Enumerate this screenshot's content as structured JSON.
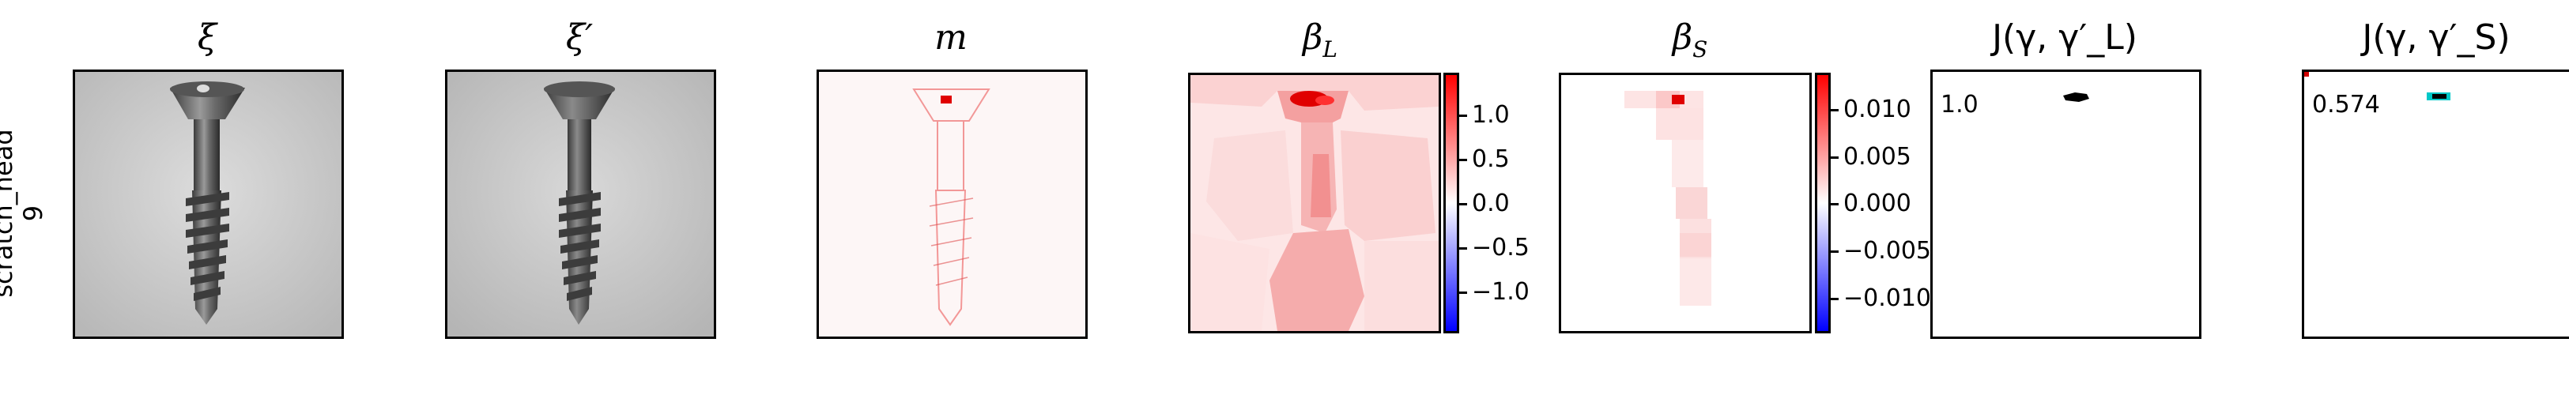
{
  "row_label": {
    "line1": "scratch_head",
    "line2": "9"
  },
  "panels": [
    {
      "key": "xi",
      "title": "ξ"
    },
    {
      "key": "xi_prime",
      "title": "ξ′"
    },
    {
      "key": "m",
      "title": "m"
    },
    {
      "key": "beta_l",
      "title": "β_L",
      "title_main": "β",
      "title_sub": "L"
    },
    {
      "key": "beta_s",
      "title": "β_S",
      "title_main": "β",
      "title_sub": "S"
    },
    {
      "key": "j_l",
      "title": "J(γ, γ′_L)"
    },
    {
      "key": "j_s",
      "title": "J(γ, γ′_S)"
    }
  ],
  "colorbar_l": {
    "ticks": [
      "1.0",
      "0.5",
      "0.0",
      "−0.5",
      "−1.0"
    ],
    "colors": {
      "top": "#ff0000",
      "mid": "#ffffff",
      "bottom": "#0000ff"
    }
  },
  "colorbar_s": {
    "ticks": [
      "0.010",
      "0.005",
      "0.000",
      "−0.005",
      "−0.010"
    ],
    "colors": {
      "top": "#ff0000",
      "mid": "#ffffff",
      "bottom": "#0000ff"
    }
  },
  "j_l": {
    "score": "1.0",
    "mark_color": "#000000"
  },
  "j_s": {
    "score": "0.574",
    "mark_color": "#00c8c8"
  }
}
